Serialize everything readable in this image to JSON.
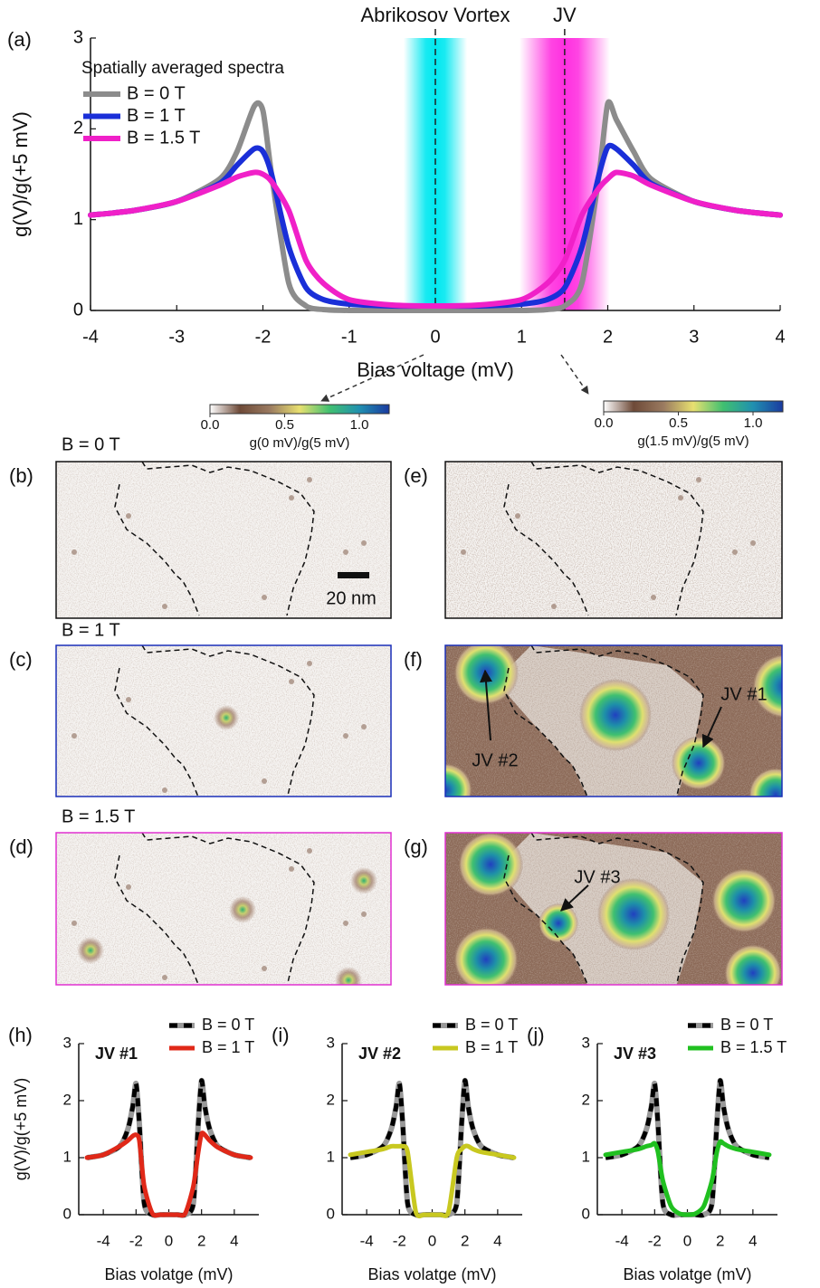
{
  "chart_data": [
    {
      "type": "line",
      "label": "(a)",
      "annotations": [
        {
          "text": "Abrikosov Vortex",
          "x": 0,
          "color": "#00e8f0"
        },
        {
          "text": "JV",
          "x": 1.5,
          "color": "#ff30e0"
        }
      ],
      "legend_title": "Spatially averaged spectra",
      "x": [
        -4,
        -3.5,
        -3,
        -2.5,
        -2.3,
        -2.1,
        -2,
        -1.9,
        -1.7,
        -1.5,
        -1.3,
        -1,
        -0.5,
        0,
        0.5,
        1,
        1.3,
        1.5,
        1.7,
        1.9,
        2,
        2.1,
        2.3,
        2.5,
        3,
        3.5,
        4
      ],
      "series": [
        {
          "name": "B = 0 T",
          "color": "#8c8c8c",
          "values": [
            1.05,
            1.1,
            1.2,
            1.45,
            1.75,
            2.25,
            2.2,
            1.5,
            0.3,
            0.05,
            0.01,
            0,
            0,
            0,
            0,
            0,
            0.01,
            0.05,
            0.3,
            1.5,
            2.28,
            2.1,
            1.75,
            1.45,
            1.2,
            1.1,
            1.05
          ]
        },
        {
          "name": "B = 1 T",
          "color": "#1a2fd8",
          "values": [
            1.05,
            1.1,
            1.2,
            1.4,
            1.6,
            1.78,
            1.75,
            1.5,
            0.7,
            0.25,
            0.12,
            0.07,
            0.05,
            0.05,
            0.05,
            0.07,
            0.12,
            0.25,
            0.7,
            1.5,
            1.8,
            1.78,
            1.6,
            1.4,
            1.2,
            1.1,
            1.05
          ]
        },
        {
          "name": "B = 1.5 T",
          "color": "#f020c8",
          "values": [
            1.05,
            1.1,
            1.2,
            1.38,
            1.47,
            1.52,
            1.5,
            1.42,
            1.1,
            0.55,
            0.3,
            0.12,
            0.06,
            0.05,
            0.06,
            0.12,
            0.3,
            0.55,
            1.05,
            1.35,
            1.45,
            1.52,
            1.48,
            1.38,
            1.2,
            1.1,
            1.05
          ]
        }
      ],
      "xlim": [
        -4,
        4
      ],
      "xticks": [
        -4,
        -3,
        -2,
        -1,
        0,
        1,
        2,
        3,
        4
      ],
      "ylim": [
        0,
        3
      ],
      "yticks": [
        0,
        1,
        2,
        3
      ],
      "xlabel": "Bias voltage (mV)",
      "ylabel": "g(V)/g(+5 mV)"
    },
    {
      "type": "colorbar",
      "title": "g(0 mV)/g(5 mV)",
      "colors": [
        "#ffffff",
        "#6e4a38",
        "#9a7a60",
        "#e8e070",
        "#40c070",
        "#2090b0",
        "#1a3aa0"
      ],
      "xlim": [
        0,
        1.2
      ],
      "xticks": [
        {
          "value": 0,
          "label": "0.0"
        },
        0.5,
        {
          "value": 1,
          "label": "1.0"
        }
      ]
    },
    {
      "type": "colorbar",
      "title": "g(1.5 mV)/g(5 mV)",
      "colors": [
        "#ffffff",
        "#6e4a38",
        "#9a7a60",
        "#e8e070",
        "#40c070",
        "#2090b0",
        "#1a3aa0"
      ],
      "xlim": [
        0,
        1.2
      ],
      "xticks": [
        {
          "value": 0,
          "label": "0.0"
        },
        0.5,
        {
          "value": 1,
          "label": "1.0"
        }
      ]
    },
    {
      "type": "line",
      "label": "(h)",
      "inset_label": "JV #1",
      "x": [
        -5,
        -4,
        -3,
        -2.5,
        -2.2,
        -2,
        -1.8,
        -1.5,
        -1,
        -0.5,
        0,
        0.5,
        1,
        1.5,
        1.8,
        2,
        2.2,
        2.5,
        3,
        4,
        5
      ],
      "series": [
        {
          "name": "B = 0 T",
          "color": "#000000",
          "halo": "#999999",
          "dashed": true,
          "values": [
            1,
            1.05,
            1.2,
            1.5,
            1.9,
            2.3,
            1.6,
            0.2,
            0,
            0,
            0,
            0,
            0,
            0.2,
            1.6,
            2.35,
            1.9,
            1.5,
            1.2,
            1.05,
            1
          ]
        },
        {
          "name": "B = 1 T",
          "color": "#e02818",
          "values": [
            1,
            1.05,
            1.2,
            1.3,
            1.38,
            1.4,
            1.3,
            0.5,
            0.02,
            0,
            0,
            0,
            0.02,
            0.5,
            1.1,
            1.42,
            1.4,
            1.3,
            1.18,
            1.05,
            1
          ]
        }
      ],
      "xlim": [
        -5.5,
        5.5
      ],
      "xticks": [
        -4,
        -2,
        0,
        2,
        4
      ],
      "ylim": [
        0,
        3
      ],
      "yticks": [
        0,
        1,
        2,
        3
      ],
      "xlabel": "Bias volatge (mV)",
      "ylabel": "g(V)/g(+5 mV)"
    },
    {
      "type": "line",
      "label": "(i)",
      "inset_label": "JV #2",
      "x": [
        -5,
        -4,
        -3,
        -2.5,
        -2.2,
        -2,
        -1.8,
        -1.5,
        -1,
        -0.5,
        0,
        0.5,
        1,
        1.5,
        1.8,
        2,
        2.2,
        2.5,
        3,
        4,
        5
      ],
      "series": [
        {
          "name": "B = 0 T",
          "color": "#000000",
          "halo": "#999999",
          "dashed": true,
          "values": [
            1,
            1.05,
            1.2,
            1.5,
            1.9,
            2.3,
            1.6,
            0.2,
            0,
            0,
            0,
            0,
            0,
            0.2,
            1.6,
            2.35,
            1.9,
            1.5,
            1.2,
            1.05,
            1
          ]
        },
        {
          "name": "B = 1 T",
          "color": "#c8c820",
          "values": [
            1.05,
            1.1,
            1.15,
            1.2,
            1.2,
            1.2,
            1.2,
            1.1,
            0.05,
            0,
            0,
            0,
            0.05,
            1,
            1.15,
            1.2,
            1.2,
            1.15,
            1.1,
            1.05,
            1
          ]
        }
      ],
      "xlim": [
        -5.5,
        5.5
      ],
      "xticks": [
        -4,
        -2,
        0,
        2,
        4
      ],
      "ylim": [
        0,
        3
      ],
      "yticks": [
        0,
        1,
        2,
        3
      ],
      "xlabel": "Bias volatge (mV)"
    },
    {
      "type": "line",
      "label": "(j)",
      "inset_label": "JV #3",
      "x": [
        -5,
        -4,
        -3,
        -2.5,
        -2.2,
        -2,
        -1.8,
        -1.5,
        -1,
        -0.5,
        0,
        0.5,
        1,
        1.5,
        1.8,
        2,
        2.2,
        2.5,
        3,
        4,
        5
      ],
      "series": [
        {
          "name": "B = 0 T",
          "color": "#000000",
          "halo": "#999999",
          "dashed": true,
          "values": [
            1,
            1.05,
            1.2,
            1.5,
            1.9,
            2.3,
            1.6,
            0.2,
            0,
            0,
            0,
            0,
            0,
            0.2,
            1.6,
            2.35,
            1.9,
            1.5,
            1.2,
            1.05,
            1
          ]
        },
        {
          "name": "B = 1.5 T",
          "color": "#20c020",
          "values": [
            1.05,
            1.1,
            1.15,
            1.2,
            1.22,
            1.25,
            1.1,
            0.6,
            0.15,
            0.02,
            0,
            0.02,
            0.15,
            0.6,
            1.1,
            1.28,
            1.25,
            1.2,
            1.15,
            1.1,
            1.05
          ]
        }
      ],
      "xlim": [
        -5.5,
        5.5
      ],
      "xticks": [
        -4,
        -2,
        0,
        2,
        4
      ],
      "ylim": [
        0,
        3
      ],
      "yticks": [
        0,
        1,
        2,
        3
      ],
      "xlabel": "Bias volatge (mV)"
    }
  ],
  "rows": [
    {
      "field": "B = 0 T",
      "color": "#111111",
      "maps": [
        {
          "label": "(b)"
        },
        {
          "label": "(e)"
        }
      ]
    },
    {
      "field": "B = 1 T",
      "color": "#1a2fb8",
      "maps": [
        {
          "label": "(c)"
        },
        {
          "label": "(f)",
          "markers": [
            "JV #2",
            "JV #1"
          ]
        }
      ]
    },
    {
      "field": "B = 1.5 T",
      "color": "#e030d0",
      "maps": [
        {
          "label": "(d)"
        },
        {
          "label": "(g)",
          "markers": [
            "JV #3"
          ]
        }
      ]
    }
  ],
  "scale_bar": "20 nm"
}
